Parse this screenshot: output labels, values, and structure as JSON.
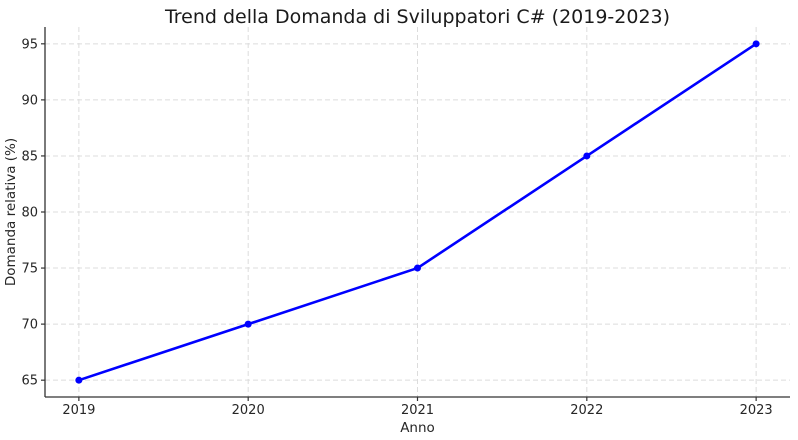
{
  "chart_data": {
    "type": "line",
    "title": "Trend della Domanda di Sviluppatori C# (2019-2023)",
    "xlabel": "Anno",
    "ylabel": "Domanda relativa (%)",
    "x": [
      2019,
      2020,
      2021,
      2022,
      2023
    ],
    "y": [
      65,
      70,
      75,
      85,
      95
    ],
    "xticks": [
      2019,
      2020,
      2021,
      2022,
      2023
    ],
    "yticks": [
      65,
      70,
      75,
      80,
      85,
      90,
      95
    ],
    "xlim": [
      2018.8,
      2023.2
    ],
    "ylim": [
      63.5,
      96.5
    ],
    "grid": true,
    "grid_style": "dashed",
    "legend": "none",
    "line_color": "#0000ff",
    "marker": "circle",
    "grid_color": "#dcdcdc",
    "spine_color": "#333333",
    "text_color": "#262626",
    "background_color": "#ffffff"
  }
}
